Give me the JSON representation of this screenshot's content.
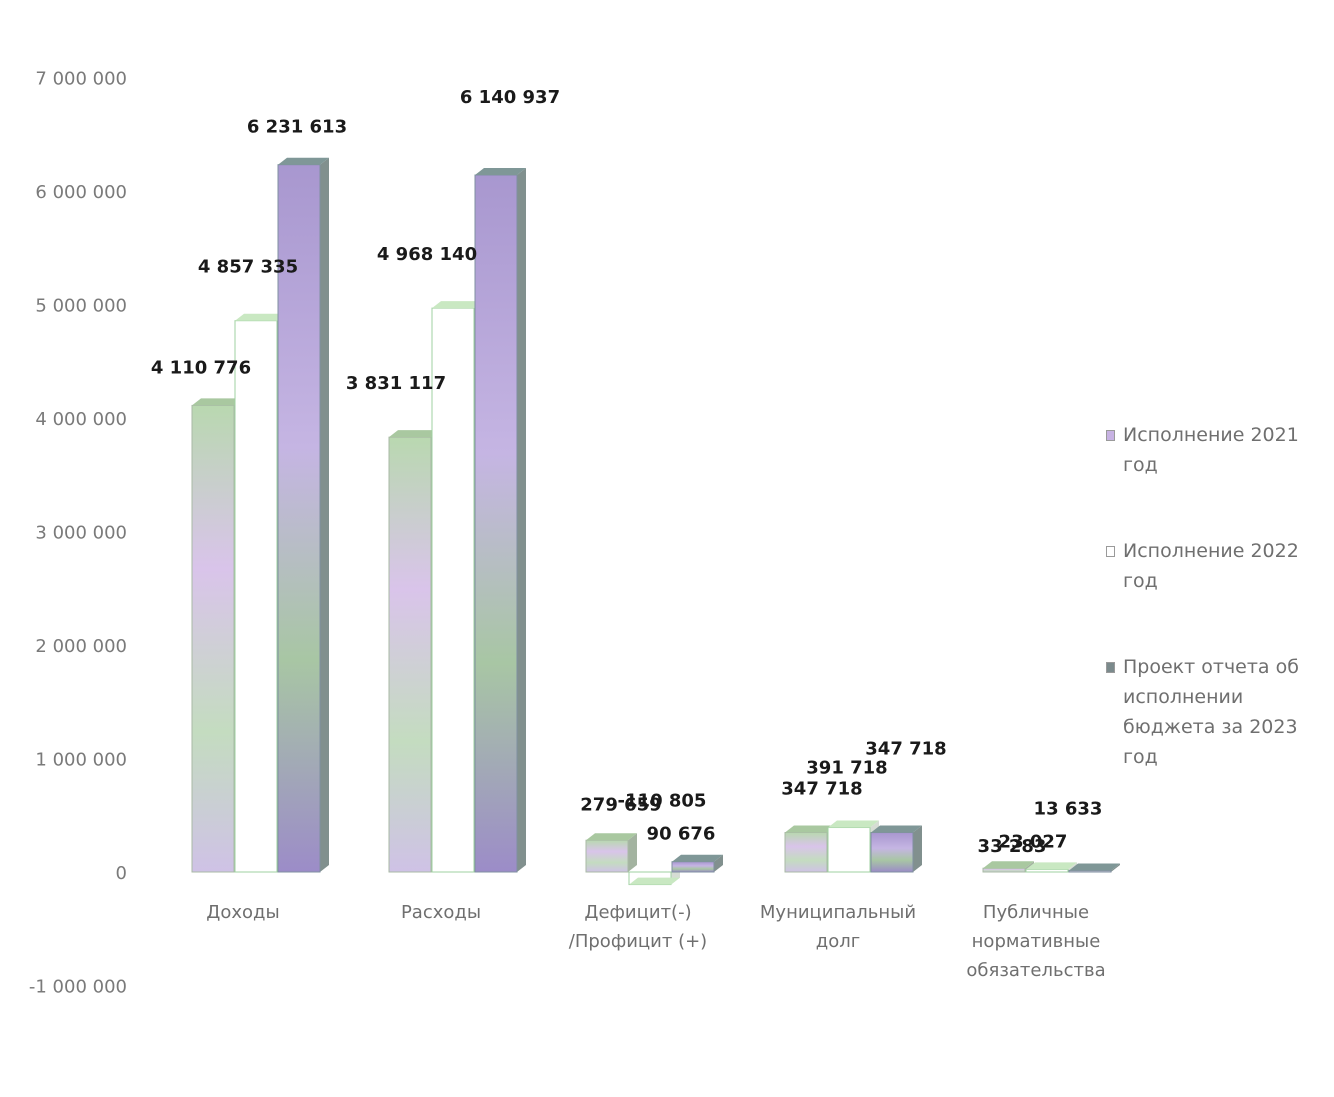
{
  "chart_data": {
    "type": "bar",
    "title": "",
    "xlabel": "",
    "ylabel": "",
    "ylim": [
      -1000000,
      7000000
    ],
    "y_ticks": [
      "7 000 000",
      "6 000 000",
      "5 000 000",
      "4 000 000",
      "3 000 000",
      "2 000 000",
      "1 000 000",
      "0",
      "-1 000 000"
    ],
    "y_tick_values": [
      7000000,
      6000000,
      5000000,
      4000000,
      3000000,
      2000000,
      1000000,
      0,
      -1000000
    ],
    "categories": [
      "Доходы",
      "Расходы",
      "Дефицит(-) /Профицит (+)",
      "Муниципальный долг",
      "Публичные нормативные обязательства"
    ],
    "category_lines": [
      [
        "Доходы"
      ],
      [
        "Расходы"
      ],
      [
        "Дефицит(-)",
        "/Профицит (+)"
      ],
      [
        "Муниципальный",
        "долг"
      ],
      [
        "Публичные",
        "нормативные",
        "обязательства"
      ]
    ],
    "series": [
      {
        "name": "Исполнение 2021 год",
        "values": [
          4110776,
          3831117,
          279659,
          347718,
          33283
        ],
        "labels": [
          "4 110 776",
          "3 831 117",
          "279 659",
          "347 718",
          "33 283"
        ],
        "color": "#c7b2e3"
      },
      {
        "name": "Исполнение 2022 год",
        "values": [
          4857335,
          4968140,
          -110805,
          391718,
          23027
        ],
        "labels": [
          "4 857 335",
          "4 968 140",
          "-110 805",
          "391 718",
          "23 027"
        ],
        "color": "#ffffff"
      },
      {
        "name": "Проект отчета об исполнении бюджета за 2023 год",
        "values": [
          6231613,
          6140937,
          90676,
          347718,
          13633
        ],
        "labels": [
          "6 231 613",
          "6 140 937",
          "90 676",
          "347 718",
          "13 633"
        ],
        "color": "#9a86c4"
      }
    ],
    "legend_position": "right",
    "grid": false
  },
  "legend": {
    "items": [
      {
        "label": "Исполнение 2021 год",
        "color": "#c7b2e3"
      },
      {
        "label": "Исполнение 2022 год",
        "color": "#ffffff"
      },
      {
        "label": "Проект отчета об исполнении бюджета за 2023 год",
        "color": "#9a86c4"
      }
    ]
  }
}
